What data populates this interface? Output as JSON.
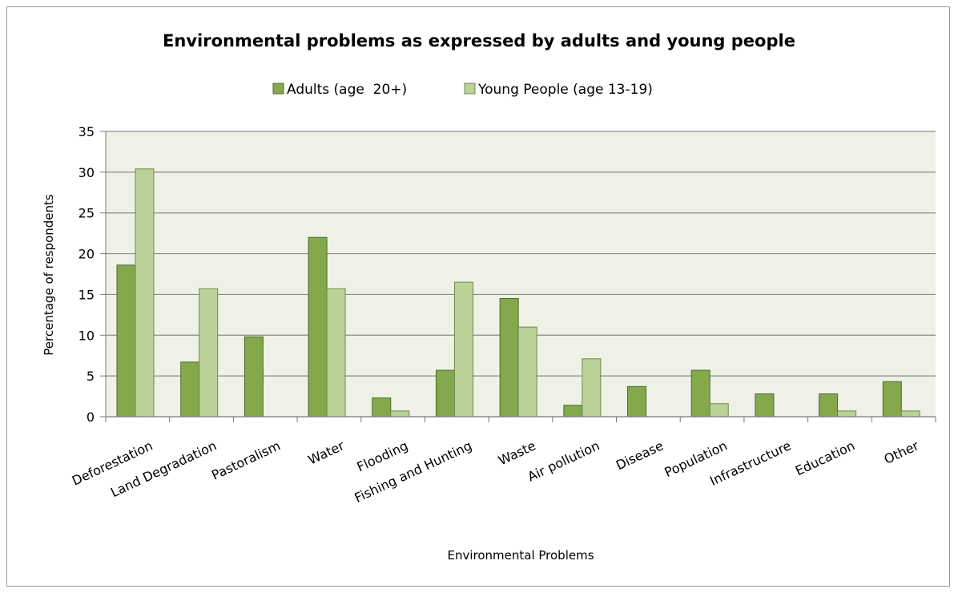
{
  "chart_data": {
    "type": "bar",
    "title": "Environmental problems as expressed by adults and young people",
    "xlabel": "Environmental Problems",
    "ylabel": "Percentage of respondents",
    "ylim": [
      0,
      35
    ],
    "yticks": [
      0,
      5,
      10,
      15,
      20,
      25,
      30,
      35
    ],
    "grid": true,
    "legend_position": "top",
    "categories": [
      "Deforestation",
      "Land Degradation",
      "Pastoralism",
      "Water",
      "Flooding",
      "Fishing and Hunting",
      "Waste",
      "Air pollution",
      "Disease",
      "Population",
      "Infrastructure",
      "Education",
      "Other"
    ],
    "series": [
      {
        "name": "Adults (age  20+)",
        "color": "#86a84c",
        "values": [
          18.6,
          6.7,
          9.8,
          22.0,
          2.3,
          5.7,
          14.5,
          1.4,
          3.7,
          5.7,
          2.8,
          2.8,
          4.3
        ]
      },
      {
        "name": "Young People (age 13-19)",
        "color": "#bcd19a",
        "values": [
          30.4,
          15.7,
          0,
          15.7,
          0.7,
          16.5,
          11.0,
          7.1,
          0,
          1.6,
          0,
          0.7,
          0.7
        ]
      }
    ],
    "plot_background": "#eef1e5",
    "grid_color": "#8a8a8a"
  }
}
